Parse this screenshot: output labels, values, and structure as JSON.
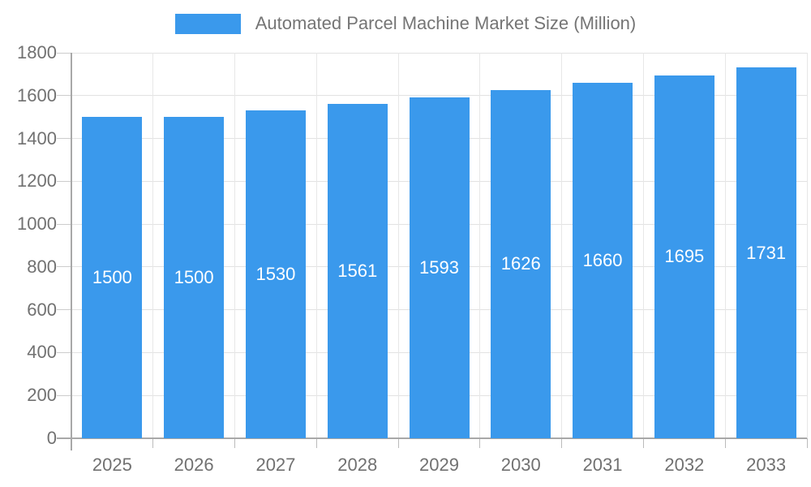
{
  "legend": {
    "label": "Automated Parcel Machine Market Size (Million)"
  },
  "colors": {
    "bar": "#3a99ec",
    "bar_label": "#ffffff",
    "axis_line": "#a8a8a8",
    "gridline": "#e2e2e2",
    "tick_text": "#717171",
    "legend_text": "#757575",
    "background": "#ffffff"
  },
  "chart_data": {
    "type": "bar",
    "title": "Automated Parcel Machine Market Size (Million)",
    "series_name": "Automated Parcel Machine Market Size (Million)",
    "categories": [
      "2025",
      "2026",
      "2027",
      "2028",
      "2029",
      "2030",
      "2031",
      "2032",
      "2033"
    ],
    "values": [
      1500,
      1500,
      1530,
      1561,
      1593,
      1626,
      1660,
      1695,
      1731
    ],
    "xlabel": "",
    "ylabel": "",
    "ylim": [
      0,
      1800
    ],
    "yticks": [
      0,
      200,
      400,
      600,
      800,
      1000,
      1200,
      1400,
      1600,
      1800
    ],
    "grid": true,
    "legend_position": "top-center",
    "value_labels": "inside-center"
  }
}
